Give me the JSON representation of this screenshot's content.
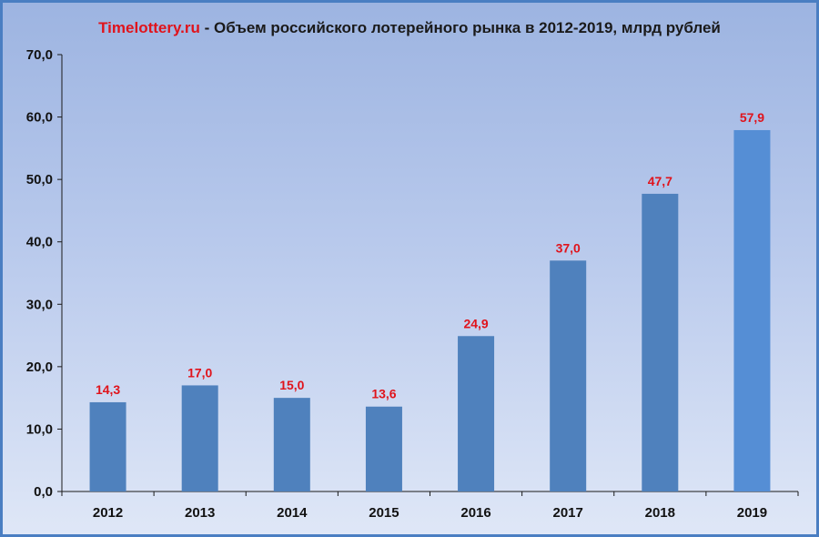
{
  "title": {
    "brand": "Timelottery.ru",
    "text": " - Объем российского лотерейного рынка в 2012-2019, млрд рублей"
  },
  "chart_data": {
    "type": "bar",
    "categories": [
      "2012",
      "2013",
      "2014",
      "2015",
      "2016",
      "2017",
      "2018",
      "2019"
    ],
    "values": [
      14.3,
      17.0,
      15.0,
      13.6,
      24.9,
      37.0,
      47.7,
      57.9
    ],
    "value_labels": [
      "14,3",
      "17,0",
      "15,0",
      "13,6",
      "24,9",
      "37,0",
      "47,7",
      "57,9"
    ],
    "yticks": [
      0,
      10,
      20,
      30,
      40,
      50,
      60,
      70
    ],
    "ytick_labels": [
      "0,0",
      "10,0",
      "20,0",
      "30,0",
      "40,0",
      "50,0",
      "60,0",
      "70,0"
    ],
    "ylim": [
      0,
      70
    ],
    "grid": false,
    "legend": "none",
    "colors": {
      "bar": "#4f81bd",
      "bar_highlight": "#558ed5",
      "data_label": "#e0131b",
      "axis": "#1a1a1a"
    }
  }
}
